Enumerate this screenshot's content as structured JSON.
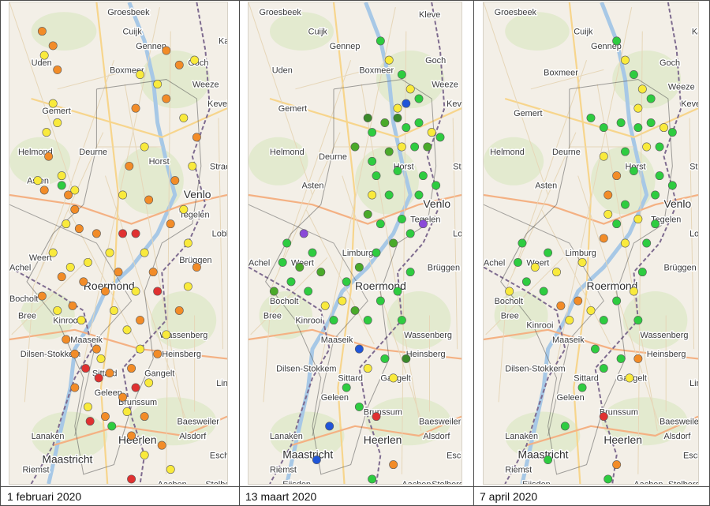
{
  "panels": [
    {
      "caption": "1 februari 2020",
      "points": [
        [
          "#f28c28",
          0.15,
          0.06
        ],
        [
          "#f28c28",
          0.2,
          0.09
        ],
        [
          "#f9ea3c",
          0.16,
          0.11
        ],
        [
          "#f28c28",
          0.22,
          0.14
        ],
        [
          "#f9ea3c",
          0.2,
          0.21
        ],
        [
          "#f9ea3c",
          0.17,
          0.27
        ],
        [
          "#f9ea3c",
          0.22,
          0.25
        ],
        [
          "#f28c28",
          0.18,
          0.32
        ],
        [
          "#f9ea3c",
          0.13,
          0.37
        ],
        [
          "#f28c28",
          0.16,
          0.39
        ],
        [
          "#f9ea3c",
          0.24,
          0.36
        ],
        [
          "#2ecc40",
          0.24,
          0.38
        ],
        [
          "#f28c28",
          0.27,
          0.4
        ],
        [
          "#f9ea3c",
          0.3,
          0.39
        ],
        [
          "#f28c28",
          0.3,
          0.43
        ],
        [
          "#f9ea3c",
          0.26,
          0.46
        ],
        [
          "#f28c28",
          0.32,
          0.47
        ],
        [
          "#f9ea3c",
          0.2,
          0.52
        ],
        [
          "#f28c28",
          0.24,
          0.57
        ],
        [
          "#f9ea3c",
          0.28,
          0.55
        ],
        [
          "#f28c28",
          0.15,
          0.61
        ],
        [
          "#f9ea3c",
          0.22,
          0.64
        ],
        [
          "#f28c28",
          0.29,
          0.63
        ],
        [
          "#f9ea3c",
          0.33,
          0.66
        ],
        [
          "#e03131",
          0.35,
          0.76
        ],
        [
          "#f28c28",
          0.3,
          0.73
        ],
        [
          "#f28c28",
          0.4,
          0.72
        ],
        [
          "#e03131",
          0.41,
          0.78
        ],
        [
          "#f9ea3c",
          0.42,
          0.74
        ],
        [
          "#f28c28",
          0.46,
          0.77
        ],
        [
          "#f28c28",
          0.26,
          0.7
        ],
        [
          "#f9ea3c",
          0.36,
          0.84
        ],
        [
          "#e03131",
          0.37,
          0.87
        ],
        [
          "#f28c28",
          0.44,
          0.86
        ],
        [
          "#2ecc40",
          0.47,
          0.88
        ],
        [
          "#f28c28",
          0.52,
          0.82
        ],
        [
          "#f9ea3c",
          0.54,
          0.85
        ],
        [
          "#f28c28",
          0.56,
          0.9
        ],
        [
          "#f28c28",
          0.62,
          0.86
        ],
        [
          "#f9ea3c",
          0.64,
          0.79
        ],
        [
          "#f28c28",
          0.68,
          0.73
        ],
        [
          "#f9ea3c",
          0.72,
          0.69
        ],
        [
          "#f28c28",
          0.78,
          0.64
        ],
        [
          "#f9ea3c",
          0.82,
          0.59
        ],
        [
          "#f28c28",
          0.86,
          0.55
        ],
        [
          "#f9ea3c",
          0.82,
          0.5
        ],
        [
          "#f28c28",
          0.74,
          0.46
        ],
        [
          "#f9ea3c",
          0.8,
          0.43
        ],
        [
          "#f28c28",
          0.76,
          0.37
        ],
        [
          "#f9ea3c",
          0.84,
          0.34
        ],
        [
          "#f28c28",
          0.86,
          0.28
        ],
        [
          "#f9ea3c",
          0.8,
          0.24
        ],
        [
          "#f28c28",
          0.72,
          0.2
        ],
        [
          "#f9ea3c",
          0.68,
          0.17
        ],
        [
          "#f28c28",
          0.78,
          0.13
        ],
        [
          "#f9ea3c",
          0.85,
          0.12
        ],
        [
          "#f28c28",
          0.72,
          0.1
        ],
        [
          "#f9ea3c",
          0.6,
          0.15
        ],
        [
          "#f28c28",
          0.58,
          0.22
        ],
        [
          "#f9ea3c",
          0.62,
          0.3
        ],
        [
          "#f28c28",
          0.55,
          0.34
        ],
        [
          "#f9ea3c",
          0.52,
          0.4
        ],
        [
          "#f28c28",
          0.64,
          0.41
        ],
        [
          "#e03131",
          0.58,
          0.48
        ],
        [
          "#f9ea3c",
          0.62,
          0.52
        ],
        [
          "#f28c28",
          0.66,
          0.56
        ],
        [
          "#e03131",
          0.68,
          0.6
        ],
        [
          "#f9ea3c",
          0.58,
          0.6
        ],
        [
          "#f28c28",
          0.6,
          0.66
        ],
        [
          "#f9ea3c",
          0.54,
          0.68
        ],
        [
          "#f28c28",
          0.5,
          0.56
        ],
        [
          "#f9ea3c",
          0.46,
          0.52
        ],
        [
          "#f28c28",
          0.44,
          0.6
        ],
        [
          "#f9ea3c",
          0.48,
          0.64
        ],
        [
          "#e03131",
          0.52,
          0.48
        ],
        [
          "#f28c28",
          0.4,
          0.48
        ],
        [
          "#f9ea3c",
          0.36,
          0.54
        ],
        [
          "#f28c28",
          0.34,
          0.58
        ],
        [
          "#f9ea3c",
          0.6,
          0.72
        ],
        [
          "#f28c28",
          0.56,
          0.76
        ],
        [
          "#e03131",
          0.58,
          0.8
        ],
        [
          "#f9ea3c",
          0.62,
          0.94
        ],
        [
          "#f28c28",
          0.7,
          0.92
        ],
        [
          "#f9ea3c",
          0.74,
          0.97
        ],
        [
          "#e03131",
          0.56,
          0.99
        ],
        [
          "#f28c28",
          0.3,
          0.8
        ]
      ]
    },
    {
      "caption": "13 maart 2020",
      "points": [
        [
          "#2ecc40",
          0.62,
          0.08
        ],
        [
          "#f9ea3c",
          0.66,
          0.12
        ],
        [
          "#2ecc40",
          0.72,
          0.15
        ],
        [
          "#f9ea3c",
          0.76,
          0.18
        ],
        [
          "#f9ea3c",
          0.7,
          0.22
        ],
        [
          "#2055d8",
          0.74,
          0.21
        ],
        [
          "#2ecc40",
          0.8,
          0.2
        ],
        [
          "#3a8a2a",
          0.56,
          0.24
        ],
        [
          "#2ecc40",
          0.58,
          0.27
        ],
        [
          "#4aaa2a",
          0.64,
          0.25
        ],
        [
          "#3a8a2a",
          0.7,
          0.24
        ],
        [
          "#2ecc40",
          0.74,
          0.26
        ],
        [
          "#2ecc40",
          0.8,
          0.25
        ],
        [
          "#f9ea3c",
          0.86,
          0.27
        ],
        [
          "#2ecc40",
          0.9,
          0.28
        ],
        [
          "#4aaa2a",
          0.84,
          0.3
        ],
        [
          "#2ecc40",
          0.78,
          0.3
        ],
        [
          "#f9ea3c",
          0.72,
          0.3
        ],
        [
          "#4aaa2a",
          0.66,
          0.31
        ],
        [
          "#2ecc40",
          0.58,
          0.33
        ],
        [
          "#4aaa2a",
          0.5,
          0.3
        ],
        [
          "#2ecc40",
          0.6,
          0.36
        ],
        [
          "#2ecc40",
          0.7,
          0.35
        ],
        [
          "#2ecc40",
          0.82,
          0.36
        ],
        [
          "#2ecc40",
          0.88,
          0.38
        ],
        [
          "#2ecc40",
          0.8,
          0.4
        ],
        [
          "#f9ea3c",
          0.58,
          0.4
        ],
        [
          "#2ecc40",
          0.66,
          0.4
        ],
        [
          "#4aaa2a",
          0.56,
          0.44
        ],
        [
          "#2ecc40",
          0.62,
          0.46
        ],
        [
          "#2ecc40",
          0.72,
          0.45
        ],
        [
          "#8a4ad8",
          0.82,
          0.46
        ],
        [
          "#2ecc40",
          0.76,
          0.48
        ],
        [
          "#4aaa2a",
          0.68,
          0.5
        ],
        [
          "#2ecc40",
          0.6,
          0.52
        ],
        [
          "#4aaa2a",
          0.52,
          0.55
        ],
        [
          "#2ecc40",
          0.46,
          0.58
        ],
        [
          "#8a4ad8",
          0.26,
          0.48
        ],
        [
          "#2ecc40",
          0.18,
          0.5
        ],
        [
          "#2ecc40",
          0.16,
          0.54
        ],
        [
          "#4aaa2a",
          0.24,
          0.55
        ],
        [
          "#2ecc40",
          0.3,
          0.52
        ],
        [
          "#4aaa2a",
          0.34,
          0.56
        ],
        [
          "#2ecc40",
          0.2,
          0.58
        ],
        [
          "#4aaa2a",
          0.12,
          0.6
        ],
        [
          "#2ecc40",
          0.28,
          0.6
        ],
        [
          "#f9ea3c",
          0.36,
          0.63
        ],
        [
          "#2ecc40",
          0.4,
          0.66
        ],
        [
          "#f9ea3c",
          0.44,
          0.62
        ],
        [
          "#4aaa2a",
          0.5,
          0.64
        ],
        [
          "#2ecc40",
          0.56,
          0.66
        ],
        [
          "#2ecc40",
          0.62,
          0.62
        ],
        [
          "#2ecc40",
          0.7,
          0.6
        ],
        [
          "#2ecc40",
          0.76,
          0.56
        ],
        [
          "#2ecc40",
          0.72,
          0.66
        ],
        [
          "#2055d8",
          0.52,
          0.72
        ],
        [
          "#f9ea3c",
          0.56,
          0.76
        ],
        [
          "#2ecc40",
          0.64,
          0.74
        ],
        [
          "#3a8a2a",
          0.74,
          0.74
        ],
        [
          "#f9ea3c",
          0.68,
          0.78
        ],
        [
          "#2ecc40",
          0.46,
          0.8
        ],
        [
          "#2ecc40",
          0.52,
          0.84
        ],
        [
          "#e03131",
          0.6,
          0.86
        ],
        [
          "#2055d8",
          0.38,
          0.88
        ],
        [
          "#2055d8",
          0.32,
          0.95
        ],
        [
          "#f28c28",
          0.68,
          0.96
        ],
        [
          "#2ecc40",
          0.58,
          0.99
        ]
      ]
    },
    {
      "caption": "7 april 2020",
      "points": [
        [
          "#2ecc40",
          0.62,
          0.08
        ],
        [
          "#f9ea3c",
          0.66,
          0.12
        ],
        [
          "#2ecc40",
          0.7,
          0.15
        ],
        [
          "#f9ea3c",
          0.74,
          0.18
        ],
        [
          "#f9ea3c",
          0.72,
          0.22
        ],
        [
          "#2ecc40",
          0.78,
          0.2
        ],
        [
          "#2ecc40",
          0.5,
          0.24
        ],
        [
          "#2ecc40",
          0.56,
          0.26
        ],
        [
          "#2ecc40",
          0.64,
          0.25
        ],
        [
          "#2ecc40",
          0.72,
          0.26
        ],
        [
          "#2ecc40",
          0.78,
          0.25
        ],
        [
          "#f9ea3c",
          0.84,
          0.26
        ],
        [
          "#2ecc40",
          0.88,
          0.27
        ],
        [
          "#2ecc40",
          0.82,
          0.3
        ],
        [
          "#f9ea3c",
          0.76,
          0.3
        ],
        [
          "#2ecc40",
          0.66,
          0.31
        ],
        [
          "#f9ea3c",
          0.56,
          0.32
        ],
        [
          "#f28c28",
          0.62,
          0.36
        ],
        [
          "#2ecc40",
          0.7,
          0.35
        ],
        [
          "#2ecc40",
          0.82,
          0.36
        ],
        [
          "#2ecc40",
          0.88,
          0.38
        ],
        [
          "#2ecc40",
          0.8,
          0.4
        ],
        [
          "#f28c28",
          0.58,
          0.4
        ],
        [
          "#2ecc40",
          0.66,
          0.42
        ],
        [
          "#f9ea3c",
          0.58,
          0.44
        ],
        [
          "#2ecc40",
          0.62,
          0.46
        ],
        [
          "#f9ea3c",
          0.72,
          0.45
        ],
        [
          "#2ecc40",
          0.8,
          0.46
        ],
        [
          "#f28c28",
          0.56,
          0.49
        ],
        [
          "#f9ea3c",
          0.66,
          0.5
        ],
        [
          "#2ecc40",
          0.76,
          0.5
        ],
        [
          "#f9ea3c",
          0.46,
          0.54
        ],
        [
          "#2ecc40",
          0.18,
          0.5
        ],
        [
          "#2ecc40",
          0.16,
          0.54
        ],
        [
          "#f9ea3c",
          0.24,
          0.55
        ],
        [
          "#2ecc40",
          0.3,
          0.52
        ],
        [
          "#f9ea3c",
          0.34,
          0.56
        ],
        [
          "#2ecc40",
          0.2,
          0.58
        ],
        [
          "#f9ea3c",
          0.12,
          0.6
        ],
        [
          "#2ecc40",
          0.28,
          0.6
        ],
        [
          "#f28c28",
          0.36,
          0.63
        ],
        [
          "#f9ea3c",
          0.4,
          0.66
        ],
        [
          "#f28c28",
          0.44,
          0.62
        ],
        [
          "#f9ea3c",
          0.5,
          0.64
        ],
        [
          "#2ecc40",
          0.56,
          0.66
        ],
        [
          "#2ecc40",
          0.62,
          0.62
        ],
        [
          "#f9ea3c",
          0.7,
          0.6
        ],
        [
          "#2ecc40",
          0.74,
          0.56
        ],
        [
          "#2ecc40",
          0.72,
          0.66
        ],
        [
          "#2ecc40",
          0.52,
          0.72
        ],
        [
          "#2ecc40",
          0.56,
          0.76
        ],
        [
          "#2ecc40",
          0.64,
          0.74
        ],
        [
          "#f28c28",
          0.72,
          0.74
        ],
        [
          "#f9ea3c",
          0.68,
          0.78
        ],
        [
          "#2ecc40",
          0.46,
          0.8
        ],
        [
          "#e03131",
          0.56,
          0.86
        ],
        [
          "#2ecc40",
          0.38,
          0.88
        ],
        [
          "#2ecc40",
          0.3,
          0.95
        ],
        [
          "#f28c28",
          0.62,
          0.96
        ],
        [
          "#2ecc40",
          0.58,
          0.99
        ]
      ]
    }
  ],
  "places": {
    "panel1": [
      "Groesbeek",
      "Cuijk",
      "Gennep",
      "Uden",
      "Boxmeer",
      "Goch",
      "Weeze",
      "Kevelae",
      "Gemert",
      "Helmond",
      "Deurne",
      "Asten",
      "Horst",
      "Venlo",
      "Tegelen",
      "Lobb",
      "Brüggen",
      "Weert",
      "Roermond",
      "Bocholt",
      "Bree",
      "Kinrooi",
      "Maaseik",
      "Wassenberg",
      "Heinsberg",
      "Dilsen-Stokkem",
      "Sittard",
      "Gangelt",
      "Geleen",
      "Brunssum",
      "Heerlen",
      "Baesweiler",
      "Alsdorf",
      "Lanaken",
      "Maastricht",
      "Riemst",
      "Eschw",
      "Stolbe",
      "Aachen",
      "Straelen",
      "Achel",
      "Kal",
      "Linn"
    ],
    "panel2": [
      "Groesbeek",
      "Kleve",
      "Cuijk",
      "Gennep",
      "Uden",
      "Boxmeer",
      "Goch",
      "Weeze",
      "Gemert",
      "Helmond",
      "Deurne",
      "Asten",
      "Horst",
      "Venlo",
      "Tegelen",
      "Brüggen",
      "Weert",
      "Limburg",
      "Roermond",
      "Bocholt",
      "Bree",
      "Kinrooi",
      "Maaseik",
      "Wassenberg",
      "Heinsberg",
      "Dilsen-Stokkem",
      "Sittard",
      "Gangelt",
      "Geleen",
      "Brunssum",
      "Heerlen",
      "Baesweiler",
      "Alsdorf",
      "Lanaken",
      "Maastricht",
      "Riemst",
      "Eschw",
      "Stolberg",
      "Aachen",
      "Eijsden",
      "Achel",
      "Kevelaer",
      "Straelen",
      "Lobb"
    ],
    "panel3": [
      "Groesbeek",
      "Cuijk",
      "Gennep",
      "Goch",
      "Boxmeer",
      "Weeze",
      "Kevelae",
      "Gemert",
      "Helmond",
      "Deurne",
      "Asten",
      "Horst",
      "Venlo",
      "Tegelen",
      "Lobb",
      "Brüggen",
      "Weert",
      "Limburg",
      "Roermond",
      "Bocholt",
      "Bree",
      "Kinrooi",
      "Maaseik",
      "Wassenberg",
      "Heinsberg",
      "Dilsen-Stokkem",
      "Sittard",
      "Gangelt",
      "Geleen",
      "Brunssum",
      "Heerlen",
      "Baesweiler",
      "Alsdorf",
      "Lanaken",
      "Maastricht",
      "Riemst",
      "Eschwe",
      "Stolberg",
      "Aachen",
      "Eijsden",
      "Achel",
      "Straelen",
      "Kal",
      "Linn"
    ]
  },
  "colors": {
    "map_bg": "#f3efe7",
    "green_area": "#dfe9c9",
    "river": "#a7c8e6",
    "road_major": "#f4b183",
    "road_minor": "#f7d58c",
    "border": "#7e6b8f",
    "admin": "#555555"
  }
}
